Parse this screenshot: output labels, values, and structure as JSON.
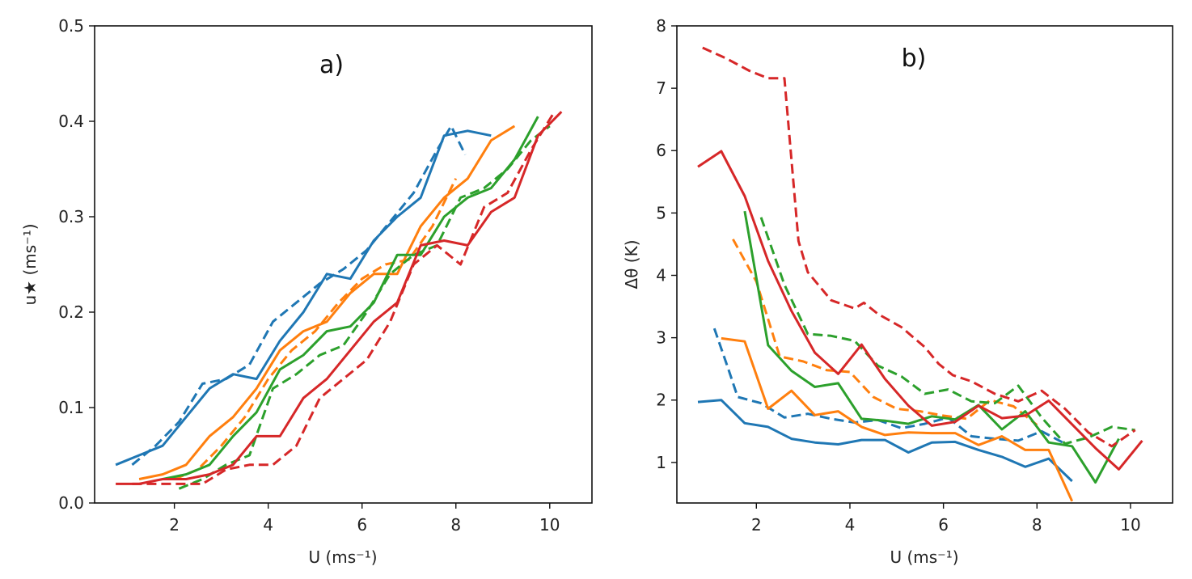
{
  "chart_data": [
    {
      "type": "line",
      "title": "a)",
      "xlabel": "U (ms⁻¹)",
      "ylabel": "u★ (ms⁻¹)",
      "xlim": [
        0.3,
        10.9
      ],
      "ylim": [
        0,
        0.5
      ],
      "xticks": [
        2,
        4,
        6,
        8,
        10
      ],
      "yticks": [
        0.0,
        0.1,
        0.2,
        0.3,
        0.4,
        0.5
      ],
      "ytick_labels": [
        "0.0",
        "0.1",
        "0.2",
        "0.3",
        "0.4",
        "0.5"
      ],
      "xtick_labels": [
        "2",
        "4",
        "6",
        "8",
        "10"
      ],
      "series": [
        {
          "name": "blue solid",
          "color": "#1f77b4",
          "dash": "solid",
          "x": [
            0.75,
            1.25,
            1.75,
            2.25,
            2.75,
            3.25,
            3.75,
            4.25,
            4.75,
            5.25,
            5.75,
            6.25,
            6.75,
            7.25,
            7.75,
            8.25,
            8.75
          ],
          "y": [
            0.04,
            0.05,
            0.06,
            0.09,
            0.12,
            0.135,
            0.13,
            0.17,
            0.2,
            0.24,
            0.235,
            0.275,
            0.3,
            0.32,
            0.385,
            0.39,
            0.385
          ]
        },
        {
          "name": "blue dashed",
          "color": "#1f77b4",
          "dash": "dashed",
          "x": [
            1.1,
            1.6,
            2.1,
            2.6,
            3.1,
            3.6,
            4.1,
            4.6,
            5.1,
            5.6,
            6.1,
            6.6,
            7.1,
            7.6,
            7.9,
            8.2
          ],
          "y": [
            0.04,
            0.06,
            0.085,
            0.125,
            0.13,
            0.145,
            0.19,
            0.21,
            0.23,
            0.245,
            0.265,
            0.295,
            0.325,
            0.37,
            0.395,
            0.365
          ]
        },
        {
          "name": "orange solid",
          "color": "#ff7f0e",
          "dash": "solid",
          "x": [
            1.25,
            1.75,
            2.25,
            2.75,
            3.25,
            3.75,
            4.25,
            4.75,
            5.25,
            5.75,
            6.25,
            6.75,
            7.25,
            7.75,
            8.25,
            8.75,
            9.25
          ],
          "y": [
            0.025,
            0.03,
            0.04,
            0.07,
            0.09,
            0.12,
            0.16,
            0.18,
            0.19,
            0.22,
            0.24,
            0.24,
            0.29,
            0.32,
            0.34,
            0.38,
            0.395
          ]
        },
        {
          "name": "orange dashed",
          "color": "#ff7f0e",
          "dash": "dashed",
          "x": [
            2.0,
            2.5,
            3.0,
            3.5,
            4.0,
            4.5,
            5.0,
            5.5,
            6.0,
            6.5,
            7.0,
            7.5,
            8.0
          ],
          "y": [
            0.025,
            0.035,
            0.06,
            0.09,
            0.13,
            0.16,
            0.18,
            0.21,
            0.235,
            0.25,
            0.255,
            0.29,
            0.34
          ]
        },
        {
          "name": "green solid",
          "color": "#2ca02c",
          "dash": "solid",
          "x": [
            1.75,
            2.25,
            2.75,
            3.25,
            3.75,
            4.25,
            4.75,
            5.25,
            5.75,
            6.25,
            6.75,
            7.25,
            7.75,
            8.25,
            8.75,
            9.25,
            9.75
          ],
          "y": [
            0.025,
            0.03,
            0.04,
            0.07,
            0.095,
            0.14,
            0.155,
            0.18,
            0.185,
            0.21,
            0.26,
            0.26,
            0.3,
            0.32,
            0.33,
            0.36,
            0.405
          ]
        },
        {
          "name": "green dashed",
          "color": "#2ca02c",
          "dash": "dashed",
          "x": [
            2.1,
            2.6,
            3.1,
            3.6,
            4.1,
            4.6,
            5.1,
            5.6,
            6.1,
            6.6,
            7.1,
            7.6,
            8.1,
            8.6,
            9.1,
            9.6,
            10.0
          ],
          "y": [
            0.015,
            0.025,
            0.04,
            0.05,
            0.12,
            0.135,
            0.155,
            0.165,
            0.2,
            0.24,
            0.26,
            0.27,
            0.32,
            0.33,
            0.35,
            0.38,
            0.395
          ]
        },
        {
          "name": "red solid",
          "color": "#d62728",
          "dash": "solid",
          "x": [
            0.75,
            1.25,
            1.75,
            2.25,
            2.75,
            3.25,
            3.75,
            4.25,
            4.75,
            5.25,
            5.75,
            6.25,
            6.75,
            7.25,
            7.75,
            8.25,
            8.75,
            9.25,
            9.75,
            10.25
          ],
          "y": [
            0.02,
            0.02,
            0.025,
            0.025,
            0.03,
            0.04,
            0.07,
            0.07,
            0.11,
            0.13,
            0.16,
            0.19,
            0.21,
            0.27,
            0.275,
            0.27,
            0.305,
            0.32,
            0.385,
            0.41
          ]
        },
        {
          "name": "red dashed",
          "color": "#d62728",
          "dash": "dashed",
          "x": [
            1.1,
            1.6,
            2.1,
            2.6,
            3.1,
            3.6,
            4.1,
            4.6,
            5.1,
            5.6,
            6.1,
            6.6,
            7.1,
            7.6,
            8.1,
            8.6,
            9.1,
            9.6,
            10.1
          ],
          "y": [
            0.02,
            0.02,
            0.02,
            0.02,
            0.035,
            0.04,
            0.04,
            0.06,
            0.11,
            0.13,
            0.15,
            0.19,
            0.25,
            0.27,
            0.25,
            0.31,
            0.325,
            0.37,
            0.41
          ]
        }
      ]
    },
    {
      "type": "line",
      "title": "b)",
      "xlabel": "U (ms⁻¹)",
      "ylabel": "Δθ (K)",
      "xlim": [
        0.3,
        10.9
      ],
      "ylim": [
        0.35,
        8
      ],
      "xticks": [
        2,
        4,
        6,
        8,
        10
      ],
      "yticks": [
        1,
        2,
        3,
        4,
        5,
        6,
        7,
        8
      ],
      "ytick_labels": [
        "1",
        "2",
        "3",
        "4",
        "5",
        "6",
        "7",
        "8"
      ],
      "xtick_labels": [
        "2",
        "4",
        "6",
        "8",
        "10"
      ],
      "series": [
        {
          "name": "blue solid",
          "color": "#1f77b4",
          "dash": "solid",
          "x": [
            0.75,
            1.25,
            1.75,
            2.25,
            2.75,
            3.25,
            3.75,
            4.25,
            4.75,
            5.25,
            5.75,
            6.25,
            6.75,
            7.25,
            7.75,
            8.25,
            8.75
          ],
          "y": [
            1.97,
            2.0,
            1.63,
            1.57,
            1.38,
            1.32,
            1.29,
            1.36,
            1.36,
            1.16,
            1.32,
            1.33,
            1.2,
            1.09,
            0.93,
            1.06,
            0.7
          ]
        },
        {
          "name": "blue dashed",
          "color": "#1f77b4",
          "dash": "dashed",
          "x": [
            1.1,
            1.4,
            1.6,
            2.1,
            2.6,
            3.1,
            3.6,
            4.1,
            4.6,
            5.1,
            5.6,
            6.1,
            6.6,
            7.1,
            7.6,
            8.1,
            8.6
          ],
          "y": [
            3.15,
            2.5,
            2.05,
            1.95,
            1.72,
            1.78,
            1.7,
            1.64,
            1.68,
            1.55,
            1.62,
            1.72,
            1.42,
            1.38,
            1.35,
            1.5,
            1.3
          ]
        },
        {
          "name": "orange solid",
          "color": "#ff7f0e",
          "dash": "solid",
          "x": [
            1.25,
            1.75,
            2.25,
            2.75,
            3.25,
            3.75,
            4.25,
            4.75,
            5.25,
            5.75,
            6.25,
            6.75,
            7.25,
            7.75,
            8.25,
            8.75
          ],
          "y": [
            2.99,
            2.94,
            1.86,
            2.15,
            1.76,
            1.82,
            1.57,
            1.44,
            1.48,
            1.47,
            1.47,
            1.28,
            1.42,
            1.2,
            1.2,
            0.38
          ]
        },
        {
          "name": "orange dashed",
          "color": "#ff7f0e",
          "dash": "dashed",
          "x": [
            1.5,
            2.0,
            2.5,
            3.0,
            3.5,
            4.0,
            4.5,
            5.0,
            5.5,
            6.0,
            6.5,
            7.0,
            7.5,
            8.0
          ],
          "y": [
            4.58,
            3.9,
            2.7,
            2.62,
            2.48,
            2.45,
            2.05,
            1.86,
            1.82,
            1.75,
            1.7,
            2.0,
            1.9,
            1.6
          ]
        },
        {
          "name": "green solid",
          "color": "#2ca02c",
          "dash": "solid",
          "x": [
            1.75,
            2.25,
            2.75,
            3.25,
            3.75,
            4.25,
            4.75,
            5.25,
            5.75,
            6.25,
            6.75,
            7.25,
            7.75,
            8.25,
            8.75,
            9.25,
            9.75
          ],
          "y": [
            5.03,
            2.88,
            2.47,
            2.21,
            2.27,
            1.7,
            1.67,
            1.62,
            1.74,
            1.69,
            1.92,
            1.53,
            1.82,
            1.32,
            1.26,
            0.68,
            1.38
          ]
        },
        {
          "name": "green dashed",
          "color": "#2ca02c",
          "dash": "dashed",
          "x": [
            2.1,
            2.6,
            3.1,
            3.6,
            4.1,
            4.6,
            5.1,
            5.6,
            6.1,
            6.6,
            7.1,
            7.6,
            8.1,
            8.6,
            9.1,
            9.6,
            10.1
          ],
          "y": [
            4.93,
            3.85,
            3.06,
            3.03,
            2.95,
            2.55,
            2.38,
            2.1,
            2.17,
            1.98,
            1.95,
            2.23,
            1.72,
            1.3,
            1.4,
            1.57,
            1.52
          ]
        },
        {
          "name": "red solid",
          "color": "#d62728",
          "dash": "solid",
          "x": [
            0.75,
            1.25,
            1.75,
            2.25,
            2.75,
            3.25,
            3.75,
            4.25,
            4.75,
            5.25,
            5.75,
            6.25,
            6.75,
            7.25,
            7.75,
            8.25,
            8.75,
            9.25,
            9.75,
            10.25
          ],
          "y": [
            5.74,
            5.99,
            5.27,
            4.23,
            3.43,
            2.76,
            2.42,
            2.89,
            2.34,
            1.91,
            1.59,
            1.65,
            1.91,
            1.71,
            1.75,
            1.99,
            1.61,
            1.23,
            0.89,
            1.35
          ]
        },
        {
          "name": "red dashed",
          "color": "#d62728",
          "dash": "dashed",
          "x": [
            0.85,
            1.35,
            1.85,
            2.25,
            2.6,
            2.9,
            3.1,
            3.6,
            4.1,
            4.3,
            4.6,
            5.1,
            5.6,
            5.9,
            6.2,
            6.6,
            7.1,
            7.6,
            8.1,
            8.6,
            9.1,
            9.6,
            10.1
          ],
          "y": [
            7.65,
            7.48,
            7.28,
            7.16,
            7.16,
            4.55,
            4.05,
            3.6,
            3.47,
            3.56,
            3.38,
            3.17,
            2.85,
            2.58,
            2.4,
            2.3,
            2.1,
            1.98,
            2.15,
            1.86,
            1.48,
            1.26,
            1.52
          ]
        }
      ]
    }
  ]
}
